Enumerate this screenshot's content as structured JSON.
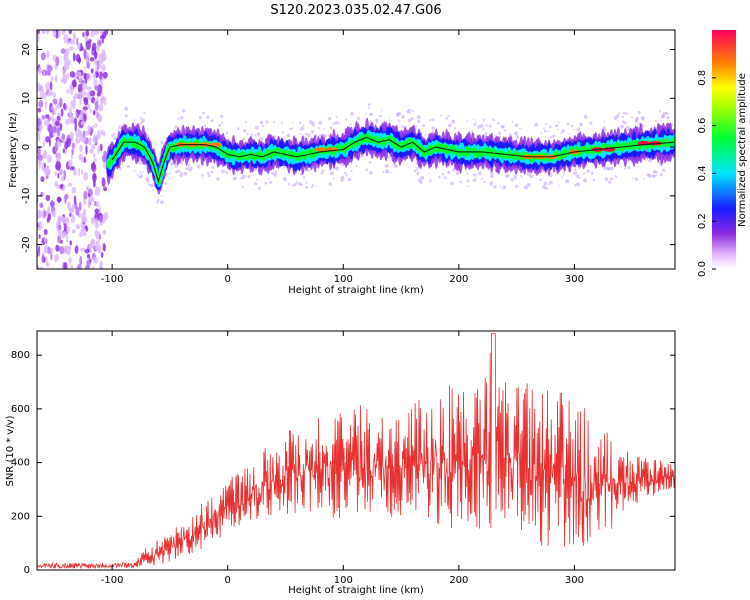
{
  "figure_title": "S120.2023.035.02.47.G06",
  "colors": {
    "snr_line": "#e8302f",
    "ridge": "#101010",
    "scatter": "#8a2be2"
  },
  "chart_data": [
    {
      "type": "heatmap",
      "title": "S120.2023.035.02.47.G06",
      "xlabel": "Height of straight line (km)",
      "ylabel": "Frequency (Hz)",
      "xlim": [
        -165,
        387
      ],
      "ylim": [
        -25,
        24
      ],
      "xticks": [
        -100,
        0,
        100,
        200,
        300
      ],
      "yticks": [
        -20,
        -10,
        0,
        10,
        20
      ],
      "colorbar": {
        "label": "Normalized spectral amplitude",
        "range": [
          0,
          1
        ],
        "ticks": [
          "0.0",
          "0.2",
          "0.4",
          "0.6",
          "0.8"
        ],
        "tick_values": [
          0.0,
          0.2,
          0.4,
          0.6,
          0.8
        ]
      },
      "ridge_frequency_hz": {
        "x": [
          -105,
          -98,
          -90,
          -80,
          -72,
          -65,
          -60,
          -55,
          -50,
          -40,
          -30,
          -20,
          -10,
          0,
          10,
          20,
          30,
          40,
          60,
          80,
          100,
          110,
          120,
          130,
          140,
          150,
          160,
          170,
          180,
          190,
          200,
          220,
          240,
          260,
          280,
          300,
          320,
          340,
          360,
          387
        ],
        "y": [
          -4,
          -2,
          1,
          1,
          0,
          -3,
          -7,
          -3,
          0,
          0.5,
          0.5,
          0.5,
          0,
          -1.5,
          -2,
          -1.5,
          -2,
          -1,
          -2,
          -1,
          -0.5,
          1,
          2,
          1,
          1.5,
          0,
          1,
          -1,
          0,
          -0.5,
          -1,
          -1,
          -1.5,
          -2,
          -2,
          -1,
          -0.5,
          0,
          0.5,
          1
        ]
      },
      "peak_amplitude": {
        "x": [
          -40,
          -30,
          -20,
          -10,
          80,
          90,
          260,
          270,
          280,
          300,
          320,
          330,
          360,
          370
        ],
        "y": [
          0.5,
          0.5,
          0.5,
          0.5,
          -0.5,
          -0.5,
          -2,
          -2,
          -2,
          -1,
          -0.5,
          -0.5,
          0.8,
          0.8
        ],
        "amplitude": [
          0.9,
          0.9,
          0.9,
          0.9,
          0.85,
          0.85,
          0.9,
          0.9,
          0.9,
          0.95,
          1.0,
          1.0,
          1.0,
          1.0
        ]
      },
      "noise_region_x": [
        -165,
        -105
      ]
    },
    {
      "type": "line",
      "xlabel": "Height of straight line (km)",
      "ylabel": "SNR (10 * v/v)",
      "xlim": [
        -165,
        387
      ],
      "ylim": [
        0,
        890
      ],
      "xticks": [
        -100,
        0,
        100,
        200,
        300
      ],
      "yticks": [
        0,
        200,
        400,
        600,
        800
      ],
      "series": [
        {
          "name": "SNR",
          "envelope": {
            "x": [
              -165,
              -80,
              -70,
              -50,
              -30,
              -10,
              0,
              20,
              40,
              60,
              80,
              100,
              120,
              140,
              160,
              180,
              200,
              220,
              230,
              240,
              260,
              280,
              300,
              320,
              340,
              360,
              387
            ],
            "low": [
              5,
              8,
              10,
              30,
              60,
              100,
              150,
              180,
              200,
              200,
              200,
              180,
              200,
              180,
              170,
              150,
              140,
              150,
              140,
              130,
              100,
              80,
              60,
              80,
              200,
              260,
              300
            ],
            "high": [
              25,
              30,
              90,
              140,
              220,
              300,
              350,
              400,
              500,
              560,
              580,
              600,
              620,
              600,
              620,
              680,
              720,
              680,
              880,
              720,
              700,
              680,
              640,
              560,
              460,
              420,
              400
            ]
          }
        }
      ]
    }
  ]
}
